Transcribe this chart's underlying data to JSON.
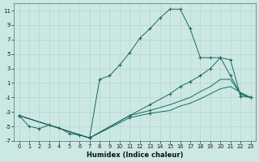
{
  "xlabel": "Humidex (Indice chaleur)",
  "background_color": "#cce8e4",
  "line_color": "#1a6b5a",
  "grid_color": "#b8d4d0",
  "xlim": [
    -0.5,
    23.5
  ],
  "ylim": [
    -7,
    12
  ],
  "xticks": [
    0,
    1,
    2,
    3,
    4,
    5,
    6,
    7,
    8,
    9,
    10,
    11,
    12,
    13,
    14,
    15,
    16,
    17,
    18,
    19,
    20,
    21,
    22,
    23
  ],
  "yticks": [
    -7,
    -5,
    -3,
    -1,
    1,
    3,
    5,
    7,
    9,
    11
  ],
  "line1_x": [
    0,
    1,
    2,
    3,
    4,
    5,
    6,
    7,
    8,
    9,
    10,
    11,
    12,
    13,
    14,
    15,
    16,
    17,
    18,
    19,
    20,
    21,
    22,
    23
  ],
  "line1_y": [
    -3.5,
    -5.0,
    -5.3,
    -4.8,
    -5.2,
    -6.0,
    -6.2,
    -6.6,
    1.5,
    2.0,
    3.5,
    5.2,
    7.2,
    8.5,
    10.0,
    11.2,
    11.2,
    8.5,
    4.5,
    4.5,
    4.5,
    4.2,
    -0.8,
    -1.0
  ],
  "line1_markers": [
    0,
    1,
    2,
    3,
    4,
    5,
    6,
    7,
    8,
    9,
    10,
    11,
    12,
    13,
    14,
    15,
    16,
    17,
    18,
    19,
    20,
    21,
    22,
    23
  ],
  "line2_x": [
    0,
    7,
    11,
    13,
    15,
    16,
    17,
    18,
    19,
    20,
    21,
    22,
    23
  ],
  "line2_y": [
    -3.5,
    -6.6,
    -3.5,
    -2.0,
    -0.5,
    0.5,
    1.2,
    2.0,
    3.0,
    4.5,
    2.0,
    -0.5,
    -1.0
  ],
  "line2_markers": [
    0,
    1,
    2,
    3,
    4,
    5,
    6,
    7,
    8,
    9,
    10,
    11,
    12
  ],
  "line3_x": [
    0,
    7,
    11,
    13,
    15,
    16,
    17,
    18,
    19,
    20,
    21,
    22,
    23
  ],
  "line3_y": [
    -3.5,
    -6.6,
    -3.5,
    -2.8,
    -2.0,
    -1.5,
    -1.0,
    -0.2,
    0.5,
    1.5,
    1.5,
    -0.5,
    -1.0
  ],
  "line3_markers": [
    0,
    1,
    2,
    3
  ],
  "line4_x": [
    0,
    7,
    11,
    13,
    15,
    16,
    17,
    18,
    19,
    20,
    21,
    22,
    23
  ],
  "line4_y": [
    -3.5,
    -6.6,
    -3.8,
    -3.2,
    -2.8,
    -2.2,
    -1.8,
    -1.2,
    -0.5,
    0.2,
    0.5,
    -0.3,
    -1.0
  ],
  "line4_markers": [
    0,
    1,
    2,
    3
  ],
  "figsize": [
    3.2,
    2.0
  ],
  "dpi": 100
}
